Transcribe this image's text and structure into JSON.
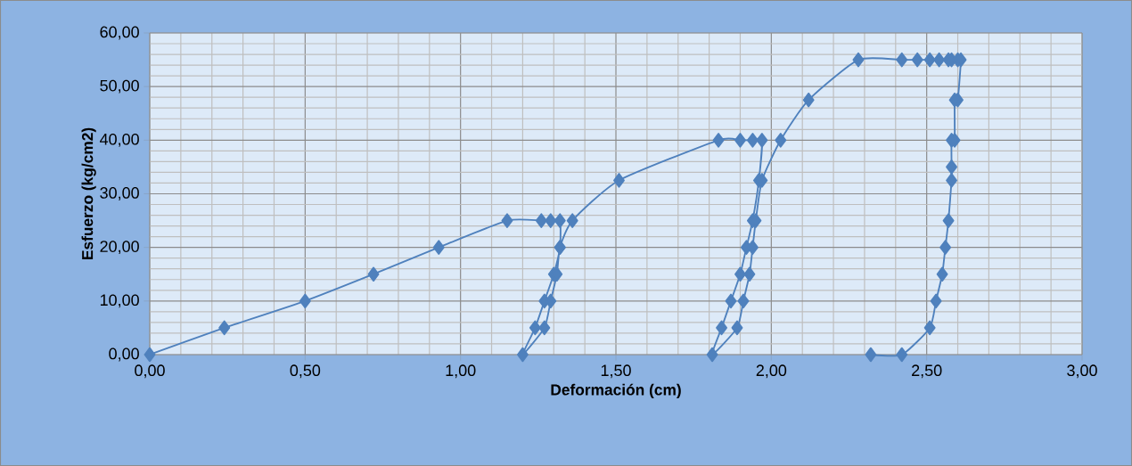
{
  "chart_data": {
    "type": "line",
    "xlabel": "Deformación (cm)",
    "ylabel": "Esfuerzo (kg/cm2)",
    "x": [
      0,
      0.24,
      0.5,
      0.72,
      0.93,
      1.15,
      1.26,
      1.29,
      1.32,
      1.32,
      1.3,
      1.27,
      1.24,
      1.2,
      1.27,
      1.29,
      1.31,
      1.32,
      1.36,
      1.51,
      1.83,
      1.9,
      1.94,
      1.97,
      1.96,
      1.94,
      1.92,
      1.9,
      1.87,
      1.84,
      1.81,
      1.89,
      1.91,
      1.93,
      1.94,
      1.95,
      1.97,
      2.03,
      2.12,
      2.28,
      2.42,
      2.47,
      2.51,
      2.54,
      2.57,
      2.58,
      2.6,
      2.61,
      2.6,
      2.59,
      2.59,
      2.58,
      2.58,
      2.58,
      2.57,
      2.56,
      2.55,
      2.53,
      2.51,
      2.42,
      2.32
    ],
    "values": [
      0,
      5,
      10,
      15,
      20,
      25,
      25,
      25,
      25,
      20,
      15,
      10,
      5,
      0,
      5,
      10,
      15,
      20,
      25,
      32.5,
      40,
      40,
      40,
      40,
      32.5,
      25,
      20,
      15,
      10,
      5,
      0,
      5,
      10,
      15,
      20,
      25,
      32.5,
      40,
      47.5,
      55,
      55,
      55,
      55,
      55,
      55,
      55,
      55,
      55,
      47.5,
      47.5,
      40,
      40,
      35,
      32.5,
      25,
      20,
      15,
      10,
      5,
      0,
      0
    ],
    "color": "#4f81bd",
    "marker": "diamond",
    "xlim": [
      0,
      3
    ],
    "ylim": [
      0,
      60
    ],
    "xticks": [
      {
        "value": 0,
        "label": "0,00"
      },
      {
        "value": 0.5,
        "label": "0,50"
      },
      {
        "value": 1,
        "label": "1,00"
      },
      {
        "value": 1.5,
        "label": "1,50"
      },
      {
        "value": 2,
        "label": "2,00"
      },
      {
        "value": 2.5,
        "label": "2,50"
      },
      {
        "value": 3,
        "label": "3,00"
      }
    ],
    "yticks": [
      {
        "value": 0,
        "label": "0,00"
      },
      {
        "value": 10,
        "label": "10,00"
      },
      {
        "value": 20,
        "label": "20,00"
      },
      {
        "value": 30,
        "label": "30,00"
      },
      {
        "value": 40,
        "label": "40,00"
      },
      {
        "value": 50,
        "label": "50,00"
      },
      {
        "value": 60,
        "label": "60,00"
      }
    ],
    "grid": true
  }
}
